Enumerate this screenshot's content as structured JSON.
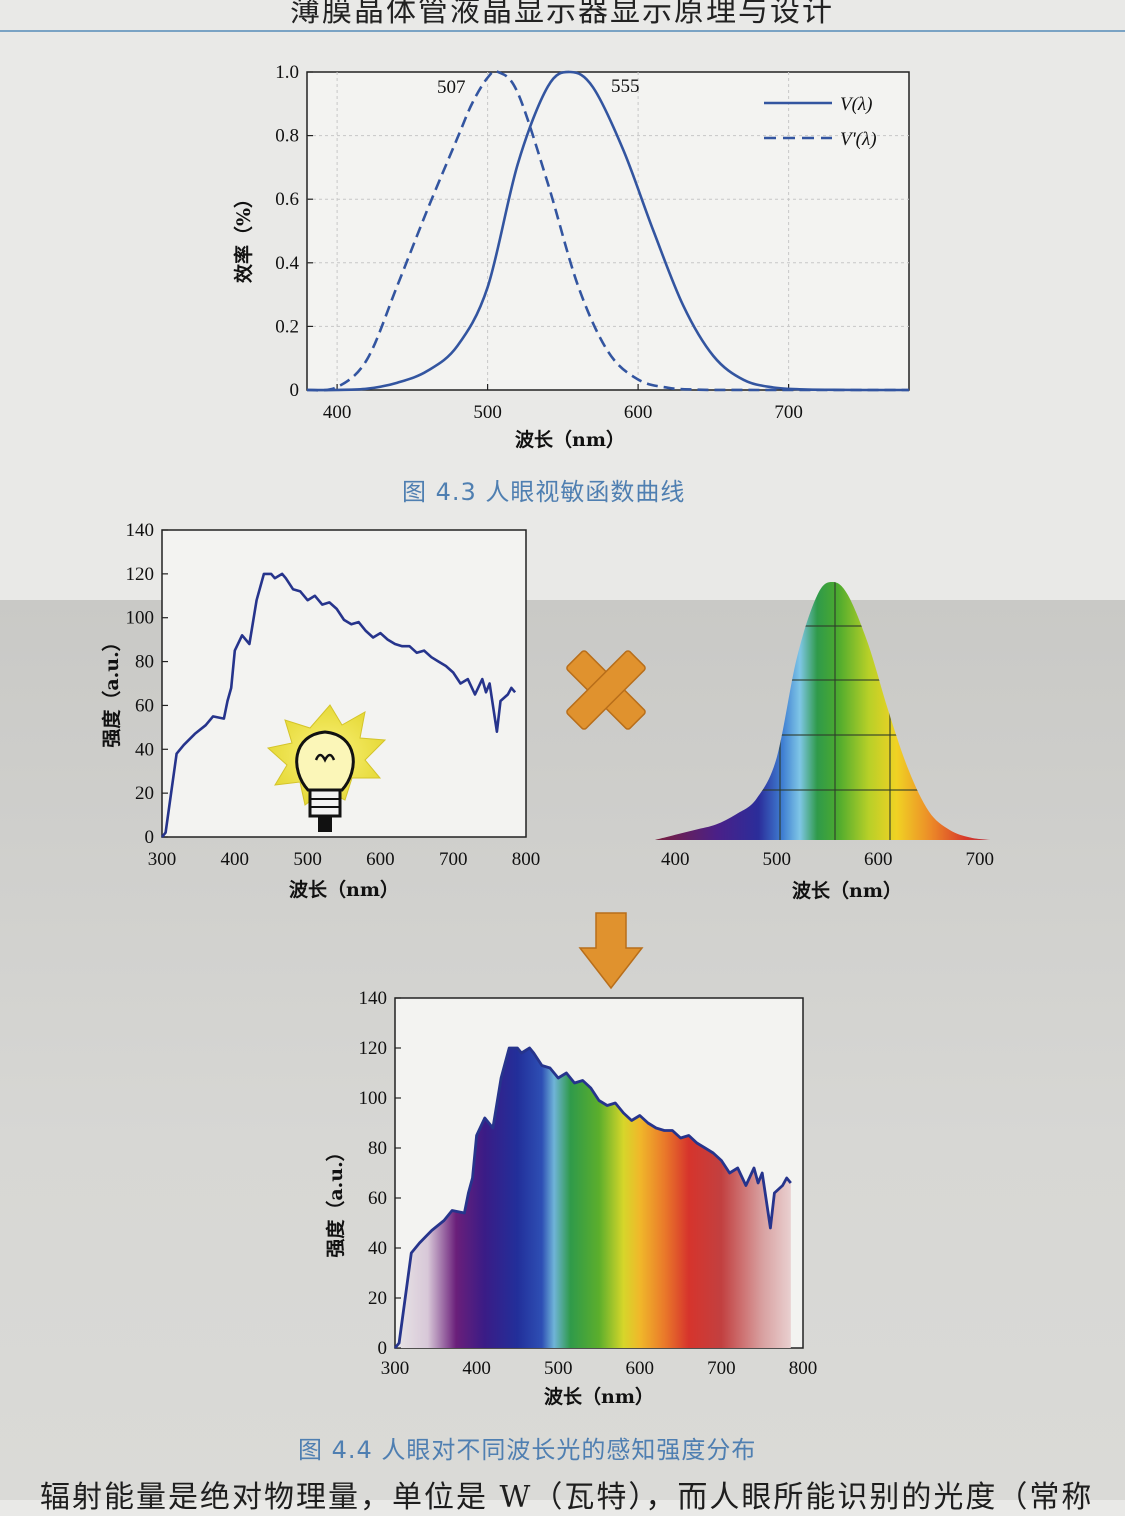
{
  "page": {
    "header": "薄膜晶体管液晶显示器显示原理与设计",
    "caption_43": "图 4.3   人眼视敏函数曲线",
    "caption_44": "图 4.4   人眼对不同波长光的感知强度分布",
    "bottom_text": "辐射能量是绝对物理量，单位是 W（瓦特），而人眼所能识别的光度（常称"
  },
  "chart_data": [
    {
      "id": "fig43",
      "type": "line",
      "xlabel": "波长（nm）",
      "ylabel": "效率（%）",
      "xlim": [
        380,
        780
      ],
      "ylim": [
        0,
        1.0
      ],
      "xticks": [
        400,
        500,
        600,
        700
      ],
      "yticks": [
        0,
        0.2,
        0.4,
        0.6,
        0.8,
        1.0
      ],
      "ytick_labels": [
        "0",
        "0.2",
        "0.4",
        "0.6",
        "0.8",
        "1.0"
      ],
      "grid": true,
      "legend_position": "top-right",
      "peak_labels": [
        "507",
        "555"
      ],
      "series": [
        {
          "name": "V(λ)",
          "style": "solid",
          "color": "#3355a0",
          "x": [
            380,
            400,
            420,
            440,
            460,
            480,
            500,
            520,
            540,
            555,
            570,
            590,
            610,
            630,
            650,
            670,
            690,
            710,
            730,
            750,
            780
          ],
          "y": [
            0.0,
            0.0004,
            0.004,
            0.023,
            0.06,
            0.139,
            0.323,
            0.71,
            0.954,
            1.0,
            0.952,
            0.757,
            0.503,
            0.265,
            0.107,
            0.032,
            0.008,
            0.002,
            0.0005,
            0.0001,
            0.0
          ]
        },
        {
          "name": "V'(λ)",
          "style": "dashed",
          "color": "#3355a0",
          "x": [
            380,
            400,
            420,
            440,
            460,
            480,
            490,
            500,
            507,
            520,
            540,
            560,
            580,
            600,
            620,
            640,
            660,
            700,
            780
          ],
          "y": [
            0.0,
            0.009,
            0.097,
            0.328,
            0.567,
            0.793,
            0.904,
            0.982,
            1.0,
            0.935,
            0.65,
            0.329,
            0.121,
            0.033,
            0.007,
            0.001,
            0.0002,
            0.0,
            0.0
          ]
        }
      ]
    },
    {
      "id": "fig44a",
      "type": "line",
      "xlabel": "波长（nm）",
      "ylabel": "强度（a.u.）",
      "xlim": [
        300,
        800
      ],
      "ylim": [
        0,
        140
      ],
      "xticks": [
        300,
        400,
        500,
        600,
        700,
        800
      ],
      "yticks": [
        0,
        20,
        40,
        60,
        80,
        100,
        120,
        140
      ],
      "series": [
        {
          "color": "#26348c",
          "x": [
            300,
            305,
            320,
            330,
            345,
            360,
            370,
            385,
            390,
            395,
            400,
            410,
            420,
            430,
            440,
            450,
            455,
            465,
            470,
            480,
            490,
            500,
            510,
            520,
            530,
            540,
            550,
            560,
            570,
            580,
            590,
            600,
            610,
            620,
            630,
            640,
            650,
            660,
            670,
            680,
            690,
            700,
            710,
            720,
            730,
            740,
            745,
            750,
            760,
            765,
            775,
            780,
            785
          ],
          "y": [
            0,
            2,
            38,
            42,
            47,
            51,
            55,
            54,
            62,
            68,
            85,
            92,
            88,
            108,
            120,
            120,
            118,
            120,
            118,
            113,
            112,
            108,
            110,
            106,
            107,
            104,
            99,
            97,
            98,
            94,
            91,
            93,
            90,
            88,
            87,
            87,
            84,
            85,
            82,
            80,
            78,
            75,
            70,
            72,
            65,
            72,
            66,
            70,
            48,
            62,
            65,
            68,
            66
          ]
        }
      ]
    },
    {
      "id": "fig44b",
      "type": "area",
      "xlabel": "波长（nm）",
      "xlim": [
        380,
        720
      ],
      "xticks": [
        400,
        500,
        600,
        700
      ],
      "series": [
        {
          "x": [
            380,
            400,
            420,
            440,
            460,
            480,
            500,
            520,
            540,
            555,
            570,
            590,
            610,
            630,
            650,
            670,
            690,
            710
          ],
          "y": [
            0.0,
            0.02,
            0.04,
            0.06,
            0.1,
            0.16,
            0.32,
            0.71,
            0.95,
            1.0,
            0.95,
            0.76,
            0.5,
            0.27,
            0.11,
            0.04,
            0.01,
            0.0
          ]
        }
      ]
    },
    {
      "id": "fig44c",
      "type": "area",
      "xlabel": "波长（nm）",
      "ylabel": "强度（a.u.）",
      "xlim": [
        300,
        800
      ],
      "ylim": [
        0,
        140
      ],
      "xticks": [
        300,
        400,
        500,
        600,
        700,
        800
      ],
      "yticks": [
        0,
        20,
        40,
        60,
        80,
        100,
        120,
        140
      ],
      "series": [
        {
          "color": "#26348c",
          "x": [
            300,
            305,
            320,
            330,
            345,
            360,
            370,
            385,
            390,
            395,
            400,
            410,
            420,
            430,
            440,
            450,
            455,
            465,
            470,
            480,
            490,
            500,
            510,
            520,
            530,
            540,
            550,
            560,
            570,
            580,
            590,
            600,
            610,
            620,
            630,
            640,
            650,
            660,
            670,
            680,
            690,
            700,
            710,
            720,
            730,
            740,
            745,
            750,
            760,
            765,
            775,
            780,
            785
          ],
          "y": [
            0,
            2,
            38,
            42,
            47,
            51,
            55,
            54,
            62,
            68,
            85,
            92,
            88,
            108,
            120,
            120,
            118,
            120,
            118,
            113,
            112,
            108,
            110,
            106,
            107,
            104,
            99,
            97,
            98,
            94,
            91,
            93,
            90,
            88,
            87,
            87,
            84,
            85,
            82,
            80,
            78,
            75,
            70,
            72,
            65,
            72,
            66,
            70,
            48,
            62,
            65,
            68,
            66
          ]
        }
      ]
    }
  ],
  "icons": {
    "multiply": "multiply-icon",
    "arrow": "arrow-down-icon",
    "bulb": "light-bulb-icon"
  },
  "colors": {
    "curve": "#3355a0",
    "caption": "#4f7fb1",
    "arrow": "#e0922e"
  }
}
